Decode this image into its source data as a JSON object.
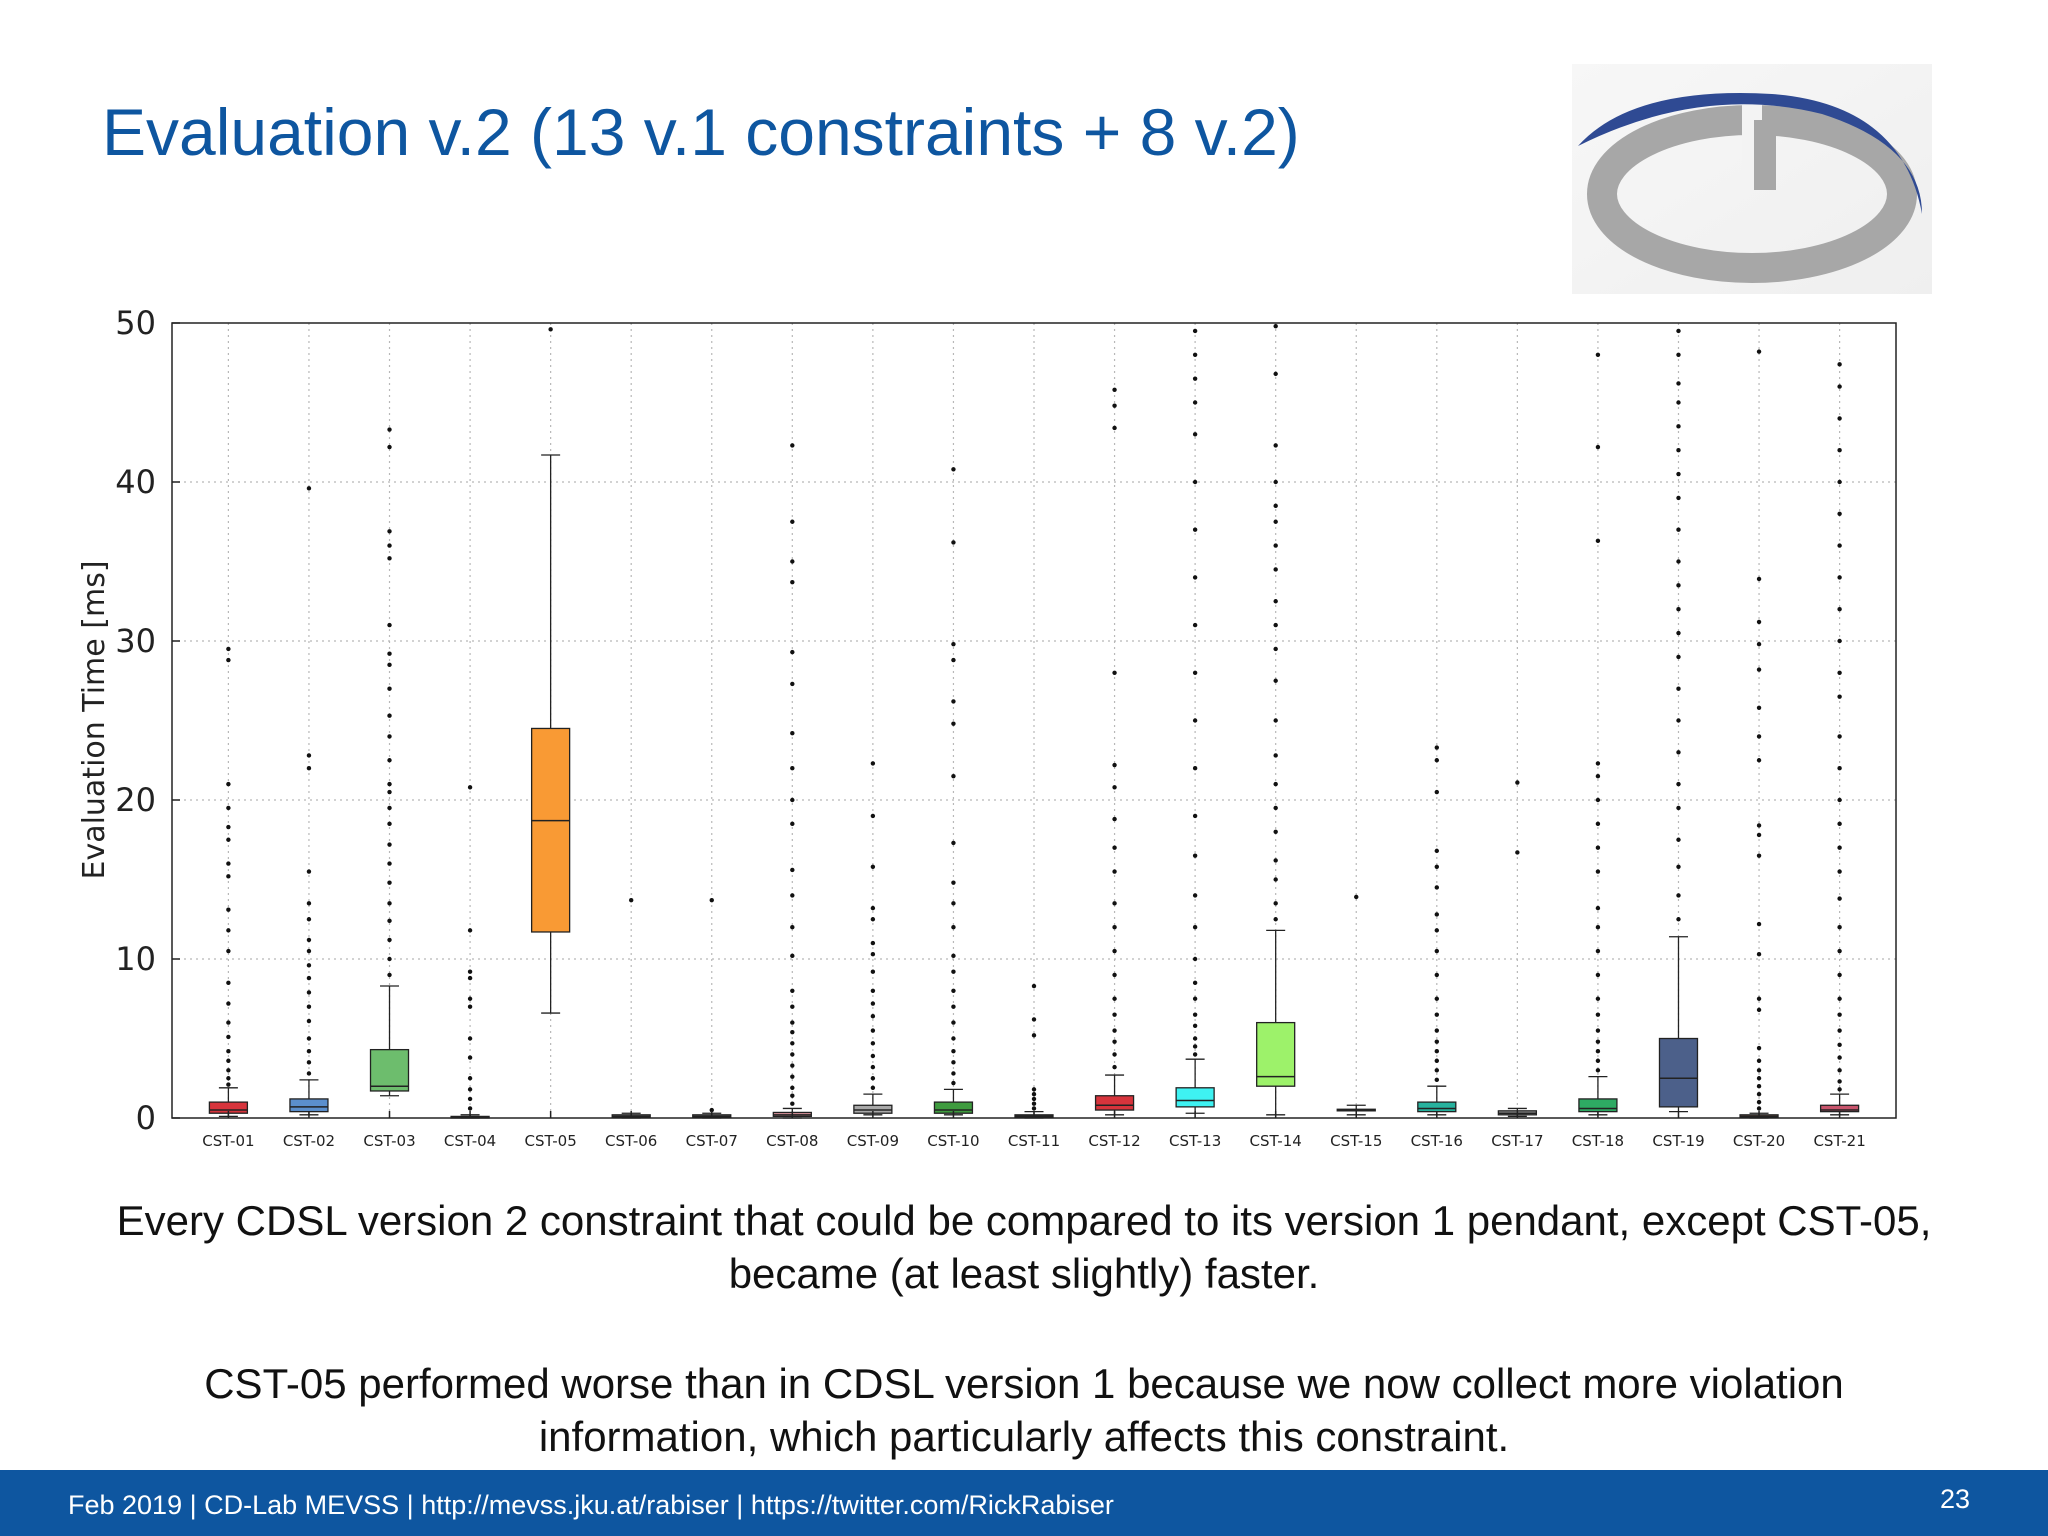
{
  "slide": {
    "title": "Evaluation v.2 (13 v.1 constraints + 8 v.2)",
    "caption_1": "Every CDSL version 2 constraint that could be compared to its version 1 pendant, except CST-05, became (at least slightly) faster.",
    "caption_2": "CST-05 performed worse than in CDSL version 1 because we now collect more violation information, which particularly affects this constraint.",
    "footer": "Feb 2019 |  CD-Lab MEVSS | http://mevss.jku.at/rabiser | https://twitter.com/RickRabiser",
    "page_number": "23"
  },
  "logo": {
    "icon": "cd-lab-logo",
    "colors": {
      "ring": "#a7a7a7",
      "arc": "#2f4a93"
    }
  },
  "chart_data": {
    "type": "box",
    "ylabel": "Evaluation Time [ms]",
    "xlabel": "",
    "ylim": [
      0,
      50
    ],
    "yticks": [
      0,
      10,
      20,
      30,
      40,
      50
    ],
    "grid": true,
    "categories": [
      "CST-01",
      "CST-02",
      "CST-03",
      "CST-04",
      "CST-05",
      "CST-06",
      "CST-07",
      "CST-08",
      "CST-09",
      "CST-10",
      "CST-11",
      "CST-12",
      "CST-13",
      "CST-14",
      "CST-15",
      "CST-16",
      "CST-17",
      "CST-18",
      "CST-19",
      "CST-20",
      "CST-21"
    ],
    "boxes": [
      {
        "label": "CST-01",
        "min": 0.1,
        "q1": 0.3,
        "median": 0.5,
        "q3": 1.0,
        "max": 1.9,
        "color": "#d7343c",
        "outliers": [
          2.1,
          2.5,
          3.0,
          3.6,
          4.2,
          5.1,
          6.0,
          7.2,
          8.5,
          10.5,
          11.8,
          13.1,
          15.2,
          16.0,
          17.5,
          18.3,
          19.5,
          21.0,
          28.8,
          29.5
        ]
      },
      {
        "label": "CST-02",
        "min": 0.2,
        "q1": 0.4,
        "median": 0.7,
        "q3": 1.2,
        "max": 2.4,
        "color": "#5b8fcd",
        "outliers": [
          2.8,
          3.5,
          4.2,
          5.0,
          6.1,
          7.0,
          7.9,
          8.8,
          9.6,
          10.5,
          11.2,
          12.5,
          13.5,
          15.5,
          22.0,
          22.8,
          39.6
        ]
      },
      {
        "label": "CST-03",
        "min": 1.4,
        "q1": 1.7,
        "median": 2.0,
        "q3": 4.3,
        "max": 8.3,
        "color": "#6dbd6d",
        "outliers": [
          9.0,
          10.0,
          11.2,
          12.4,
          13.5,
          14.8,
          16.0,
          17.2,
          18.5,
          19.5,
          20.5,
          21.0,
          22.5,
          24.0,
          25.3,
          27.0,
          28.5,
          29.2,
          31.0,
          35.2,
          36.0,
          36.9,
          42.2,
          43.3
        ]
      },
      {
        "label": "CST-04",
        "min": 0.0,
        "q1": 0.0,
        "median": 0.05,
        "q3": 0.1,
        "max": 0.2,
        "color": "#7a4a3a",
        "outliers": [
          0.6,
          1.2,
          1.8,
          2.5,
          3.8,
          5.0,
          7.0,
          7.5,
          8.8,
          9.2,
          11.8,
          20.8
        ]
      },
      {
        "label": "CST-05",
        "min": 6.6,
        "q1": 11.7,
        "median": 18.7,
        "q3": 24.5,
        "max": 41.7,
        "color": "#f99a34",
        "outliers": [
          49.6
        ]
      },
      {
        "label": "CST-06",
        "min": 0.0,
        "q1": 0.05,
        "median": 0.1,
        "q3": 0.2,
        "max": 0.3,
        "color": "#8a8a8a",
        "outliers": [
          13.7
        ]
      },
      {
        "label": "CST-07",
        "min": 0.0,
        "q1": 0.05,
        "median": 0.1,
        "q3": 0.2,
        "max": 0.3,
        "color": "#8a8a8a",
        "outliers": [
          0.5,
          13.7
        ]
      },
      {
        "label": "CST-08",
        "min": 0.0,
        "q1": 0.1,
        "median": 0.2,
        "q3": 0.35,
        "max": 0.6,
        "color": "#d89098",
        "outliers": [
          0.9,
          1.4,
          1.9,
          2.6,
          3.3,
          4.0,
          4.7,
          5.4,
          6.0,
          7.0,
          8.0,
          10.2,
          12.0,
          14.0,
          15.6,
          18.5,
          20.0,
          22.0,
          24.2,
          27.3,
          29.3,
          33.7,
          35.0,
          37.5,
          42.3
        ]
      },
      {
        "label": "CST-09",
        "min": 0.2,
        "q1": 0.3,
        "median": 0.5,
        "q3": 0.8,
        "max": 1.5,
        "color": "#a8a8a8",
        "outliers": [
          1.9,
          2.5,
          3.2,
          3.9,
          4.7,
          5.5,
          6.4,
          7.2,
          8.0,
          9.2,
          10.3,
          11.0,
          12.5,
          13.2,
          15.8,
          19.0,
          22.3
        ]
      },
      {
        "label": "CST-10",
        "min": 0.2,
        "q1": 0.3,
        "median": 0.5,
        "q3": 1.0,
        "max": 1.8,
        "color": "#3f9b3f",
        "outliers": [
          2.2,
          2.8,
          3.5,
          4.2,
          5.0,
          6.0,
          7.0,
          8.0,
          9.2,
          10.2,
          12.0,
          13.5,
          14.8,
          17.3,
          21.5,
          24.8,
          26.2,
          28.8,
          29.8,
          36.2,
          40.8
        ]
      },
      {
        "label": "CST-11",
        "min": 0.0,
        "q1": 0.05,
        "median": 0.1,
        "q3": 0.2,
        "max": 0.4,
        "color": "#3a3a3a",
        "outliers": [
          0.6,
          0.9,
          1.2,
          1.5,
          1.8,
          5.2,
          6.2,
          8.3
        ]
      },
      {
        "label": "CST-12",
        "min": 0.2,
        "q1": 0.5,
        "median": 0.8,
        "q3": 1.4,
        "max": 2.7,
        "color": "#d7343c",
        "outliers": [
          3.2,
          4.0,
          4.8,
          5.5,
          6.5,
          7.5,
          9.0,
          10.5,
          12.0,
          13.5,
          15.5,
          17.0,
          18.8,
          20.8,
          22.2,
          28.0,
          43.4,
          44.8,
          45.8
        ]
      },
      {
        "label": "CST-13",
        "min": 0.3,
        "q1": 0.7,
        "median": 1.1,
        "q3": 1.9,
        "max": 3.7,
        "color": "#3ef2f2",
        "outliers": [
          4.0,
          4.5,
          5.0,
          5.8,
          6.5,
          7.5,
          8.5,
          10.0,
          12.0,
          14.0,
          16.5,
          19.0,
          22.0,
          25.0,
          28.0,
          31.0,
          34.0,
          37.0,
          40.0,
          43.0,
          45.0,
          46.5,
          48.0,
          49.5
        ]
      },
      {
        "label": "CST-14",
        "min": 0.2,
        "q1": 2.0,
        "median": 2.6,
        "q3": 6.0,
        "max": 11.8,
        "color": "#9df26a",
        "outliers": [
          12.5,
          13.5,
          15.0,
          16.2,
          18.0,
          19.5,
          21.0,
          22.8,
          25.0,
          27.5,
          29.5,
          31.0,
          32.5,
          34.5,
          36.0,
          37.5,
          38.5,
          40.0,
          42.3,
          46.8,
          49.8
        ]
      },
      {
        "label": "CST-15",
        "min": 0.2,
        "q1": 0.45,
        "median": 0.5,
        "q3": 0.55,
        "max": 0.8,
        "color": "#dddddd",
        "outliers": [
          13.9
        ]
      },
      {
        "label": "CST-16",
        "min": 0.2,
        "q1": 0.4,
        "median": 0.6,
        "q3": 1.0,
        "max": 2.0,
        "color": "#27b29e",
        "outliers": [
          2.4,
          3.0,
          3.6,
          4.2,
          4.8,
          5.5,
          6.5,
          7.5,
          9.0,
          10.5,
          11.8,
          12.8,
          14.5,
          15.8,
          16.8,
          20.5,
          22.5,
          23.3
        ]
      },
      {
        "label": "CST-17",
        "min": 0.1,
        "q1": 0.2,
        "median": 0.3,
        "q3": 0.45,
        "max": 0.6,
        "color": "#9a9a9a",
        "outliers": [
          16.7,
          21.1
        ]
      },
      {
        "label": "CST-18",
        "min": 0.2,
        "q1": 0.4,
        "median": 0.6,
        "q3": 1.2,
        "max": 2.6,
        "color": "#2eaa63",
        "outliers": [
          3.0,
          3.6,
          4.2,
          4.8,
          5.5,
          6.5,
          7.5,
          9.0,
          10.5,
          12.0,
          13.2,
          15.5,
          17.0,
          18.5,
          20.0,
          21.5,
          22.3,
          36.3,
          42.2,
          48.0
        ]
      },
      {
        "label": "CST-19",
        "min": 0.4,
        "q1": 0.7,
        "median": 2.5,
        "q3": 5.0,
        "max": 11.4,
        "color": "#4c608a",
        "outliers": [
          12.5,
          14.0,
          15.8,
          17.5,
          19.5,
          21.0,
          23.0,
          25.0,
          27.0,
          29.0,
          30.5,
          32.0,
          33.5,
          35.0,
          37.0,
          39.0,
          40.5,
          42.0,
          43.5,
          45.0,
          46.2,
          48.0,
          49.5
        ]
      },
      {
        "label": "CST-20",
        "min": 0.0,
        "q1": 0.05,
        "median": 0.1,
        "q3": 0.2,
        "max": 0.3,
        "color": "#a6765e",
        "outliers": [
          0.6,
          1.0,
          1.5,
          2.0,
          2.5,
          3.0,
          3.6,
          4.4,
          6.8,
          7.5,
          10.3,
          12.2,
          16.5,
          17.8,
          18.4,
          22.5,
          24.0,
          25.8,
          28.2,
          29.8,
          31.2,
          33.9,
          48.2
        ]
      },
      {
        "label": "CST-21",
        "min": 0.2,
        "q1": 0.4,
        "median": 0.5,
        "q3": 0.8,
        "max": 1.5,
        "color": "#c8546c",
        "outliers": [
          1.8,
          2.3,
          3.0,
          3.8,
          4.6,
          5.5,
          6.5,
          7.5,
          9.0,
          10.5,
          12.0,
          13.8,
          15.5,
          17.0,
          18.5,
          20.0,
          22.0,
          24.0,
          26.5,
          28.0,
          30.0,
          32.0,
          34.0,
          36.0,
          38.0,
          40.0,
          42.0,
          44.0,
          46.0,
          47.4
        ]
      }
    ]
  }
}
